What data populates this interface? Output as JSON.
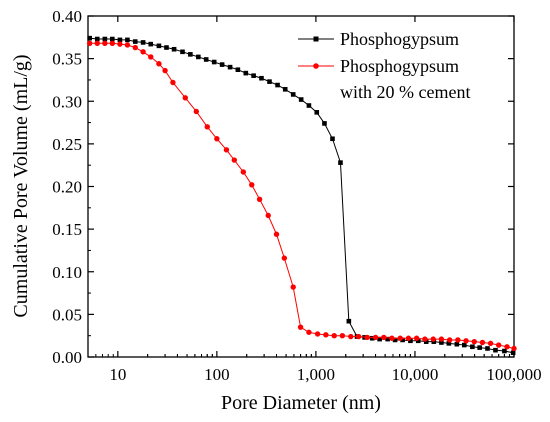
{
  "chart_data": {
    "type": "line",
    "title": "",
    "xlabel": "Pore Diameter  (nm)",
    "ylabel": "Cumulative Pore Volume  (mL/g)",
    "x_scale": "log",
    "xlim": [
      5,
      100000
    ],
    "ylim": [
      0,
      0.4
    ],
    "x_ticks": [
      10,
      100,
      1000,
      10000,
      100000
    ],
    "x_tick_labels": [
      "10",
      "100",
      "1,000",
      "10,000",
      "100,000"
    ],
    "y_ticks": [
      0,
      0.05,
      0.1,
      0.15,
      0.2,
      0.25,
      0.3,
      0.35,
      0.4
    ],
    "y_tick_labels": [
      "0.00",
      "0.05",
      "0.10",
      "0.15",
      "0.20",
      "0.25",
      "0.30",
      "0.35",
      "0.40"
    ],
    "grid": false,
    "legend_position": "top-right",
    "series": [
      {
        "name": "Phosphogypsum",
        "color": "#000000",
        "marker": "square",
        "points": [
          [
            5.2,
            0.374
          ],
          [
            6.2,
            0.373
          ],
          [
            7.4,
            0.373
          ],
          [
            8.8,
            0.373
          ],
          [
            10.5,
            0.372
          ],
          [
            12.5,
            0.372
          ],
          [
            15,
            0.37
          ],
          [
            18,
            0.369
          ],
          [
            21.5,
            0.367
          ],
          [
            26,
            0.365
          ],
          [
            31,
            0.363
          ],
          [
            37,
            0.361
          ],
          [
            45,
            0.358
          ],
          [
            54,
            0.355
          ],
          [
            65,
            0.352
          ],
          [
            78,
            0.349
          ],
          [
            94,
            0.346
          ],
          [
            113,
            0.343
          ],
          [
            136,
            0.34
          ],
          [
            163,
            0.337
          ],
          [
            196,
            0.333
          ],
          [
            235,
            0.33
          ],
          [
            282,
            0.327
          ],
          [
            340,
            0.323
          ],
          [
            410,
            0.319
          ],
          [
            490,
            0.314
          ],
          [
            590,
            0.308
          ],
          [
            710,
            0.302
          ],
          [
            850,
            0.295
          ],
          [
            1020,
            0.287
          ],
          [
            1220,
            0.274
          ],
          [
            1470,
            0.256
          ],
          [
            1770,
            0.228
          ],
          [
            2150,
            0.042
          ],
          [
            2600,
            0.024
          ],
          [
            3100,
            0.023
          ],
          [
            3700,
            0.022
          ],
          [
            4400,
            0.021
          ],
          [
            5300,
            0.021
          ],
          [
            6300,
            0.02
          ],
          [
            7500,
            0.02
          ],
          [
            9000,
            0.019
          ],
          [
            10800,
            0.019
          ],
          [
            13000,
            0.018
          ],
          [
            15500,
            0.018
          ],
          [
            18500,
            0.017
          ],
          [
            22000,
            0.016
          ],
          [
            26500,
            0.015
          ],
          [
            31500,
            0.014
          ],
          [
            38000,
            0.012
          ],
          [
            45000,
            0.011
          ],
          [
            54000,
            0.01
          ],
          [
            65000,
            0.008
          ],
          [
            80000,
            0.007
          ],
          [
            98000,
            0.005
          ]
        ]
      },
      {
        "name": "Phosphogypsum with 20 % cement",
        "color": "#ff0000",
        "marker": "circle",
        "points": [
          [
            5.2,
            0.368
          ],
          [
            6.2,
            0.368
          ],
          [
            7.4,
            0.368
          ],
          [
            8.8,
            0.368
          ],
          [
            10.5,
            0.367
          ],
          [
            12.5,
            0.366
          ],
          [
            15,
            0.363
          ],
          [
            18,
            0.358
          ],
          [
            21.5,
            0.352
          ],
          [
            26,
            0.344
          ],
          [
            30,
            0.336
          ],
          [
            36,
            0.322
          ],
          [
            48,
            0.304
          ],
          [
            62,
            0.288
          ],
          [
            80,
            0.27
          ],
          [
            100,
            0.256
          ],
          [
            125,
            0.243
          ],
          [
            150,
            0.231
          ],
          [
            185,
            0.217
          ],
          [
            225,
            0.202
          ],
          [
            270,
            0.185
          ],
          [
            330,
            0.166
          ],
          [
            400,
            0.144
          ],
          [
            480,
            0.116
          ],
          [
            590,
            0.082
          ],
          [
            700,
            0.035
          ],
          [
            850,
            0.029
          ],
          [
            1040,
            0.027
          ],
          [
            1260,
            0.026
          ],
          [
            1530,
            0.025
          ],
          [
            1850,
            0.025
          ],
          [
            2250,
            0.024
          ],
          [
            2700,
            0.024
          ],
          [
            3300,
            0.023
          ],
          [
            4000,
            0.023
          ],
          [
            4850,
            0.023
          ],
          [
            5850,
            0.022
          ],
          [
            7100,
            0.022
          ],
          [
            8600,
            0.022
          ],
          [
            10400,
            0.022
          ],
          [
            12600,
            0.021
          ],
          [
            15300,
            0.021
          ],
          [
            18500,
            0.021
          ],
          [
            22400,
            0.02
          ],
          [
            27100,
            0.02
          ],
          [
            32800,
            0.019
          ],
          [
            39700,
            0.018
          ],
          [
            48000,
            0.017
          ],
          [
            58000,
            0.016
          ],
          [
            70000,
            0.014
          ],
          [
            85000,
            0.012
          ],
          [
            100000,
            0.01
          ]
        ]
      }
    ]
  },
  "legend": {
    "entries": [
      {
        "lines": [
          "Phosphogypsum"
        ]
      },
      {
        "lines": [
          "Phosphogypsum",
          "with 20 % cement"
        ]
      }
    ]
  }
}
